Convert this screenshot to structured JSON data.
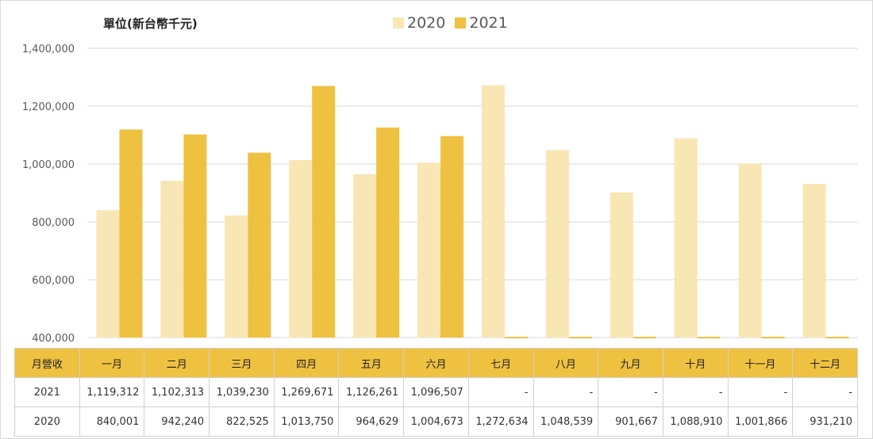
{
  "unit_label": "單位(新台幣千元)",
  "colors": {
    "series_2020": "#F8E6B4",
    "series_2021": "#EFC141",
    "header_bg": "#EFC141",
    "grid": "#d9d9d9"
  },
  "chart_data": {
    "type": "bar",
    "categories": [
      "一月",
      "二月",
      "三月",
      "四月",
      "五月",
      "六月",
      "七月",
      "八月",
      "九月",
      "十月",
      "十一月",
      "十二月"
    ],
    "series": [
      {
        "name": "2020",
        "values": [
          840001,
          942240,
          822525,
          1013750,
          964629,
          1004673,
          1272634,
          1048539,
          901667,
          1088910,
          1001866,
          931210
        ]
      },
      {
        "name": "2021",
        "values": [
          1119312,
          1102313,
          1039230,
          1269671,
          1126261,
          1096507,
          null,
          null,
          null,
          null,
          null,
          null
        ]
      }
    ],
    "ylim": [
      400000,
      1400000
    ],
    "yticks": [
      400000,
      600000,
      800000,
      1000000,
      1200000,
      1400000
    ],
    "ytick_labels": [
      "400,000",
      "600,000",
      "800,000",
      "1,000,000",
      "1,200,000",
      "1,400,000"
    ],
    "grid": true,
    "legend_position": "top-center"
  },
  "table": {
    "header_label": "月營收",
    "months": [
      "一月",
      "二月",
      "三月",
      "四月",
      "五月",
      "六月",
      "七月",
      "八月",
      "九月",
      "十月",
      "十一月",
      "十二月"
    ],
    "rows": [
      {
        "label": "2021",
        "cells": [
          "1,119,312",
          "1,102,313",
          "1,039,230",
          "1,269,671",
          "1,126,261",
          "1,096,507",
          "-",
          "-",
          "-",
          "-",
          "-",
          "-"
        ]
      },
      {
        "label": "2020",
        "cells": [
          "840,001",
          "942,240",
          "822,525",
          "1,013,750",
          "964,629",
          "1,004,673",
          "1,272,634",
          "1,048,539",
          "901,667",
          "1,088,910",
          "1,001,866",
          "931,210"
        ]
      }
    ]
  }
}
